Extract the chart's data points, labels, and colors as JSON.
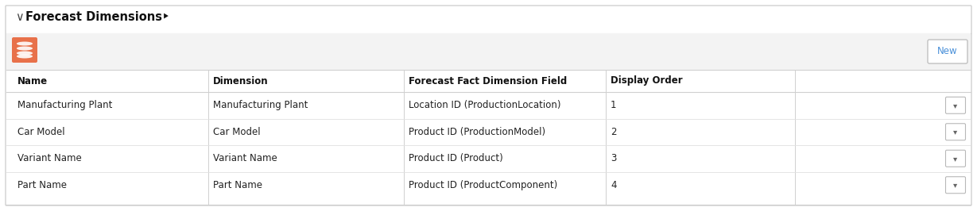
{
  "title": "Forecast Dimensions",
  "header_bg": "#f3f3f3",
  "border_color": "#d0d0d0",
  "row_separator": "#e0e0e0",
  "columns": [
    "Name",
    "Dimension",
    "Forecast Fact Dimension Field",
    "Display Order"
  ],
  "rows": [
    [
      "Manufacturing Plant",
      "Manufacturing Plant",
      "Location ID (ProductionLocation)",
      "1"
    ],
    [
      "Car Model",
      "Car Model",
      "Product ID (ProductionModel)",
      "2"
    ],
    [
      "Variant Name",
      "Variant Name",
      "Product ID (Product)",
      "3"
    ],
    [
      "Part Name",
      "Part Name",
      "Product ID (ProductComponent)",
      "4"
    ]
  ],
  "icon_color": "#e8714a",
  "new_button_color": "#4a90d9",
  "new_button_border": "#c0c0c0",
  "title_fontsize": 10.5,
  "header_fontsize": 8.5,
  "cell_fontsize": 8.5,
  "title_color": "#111111",
  "header_text_color": "#111111",
  "cell_text_color": "#222222",
  "chevron_color": "#666666",
  "figwidth": 12.29,
  "figheight": 2.66,
  "dpi": 100
}
